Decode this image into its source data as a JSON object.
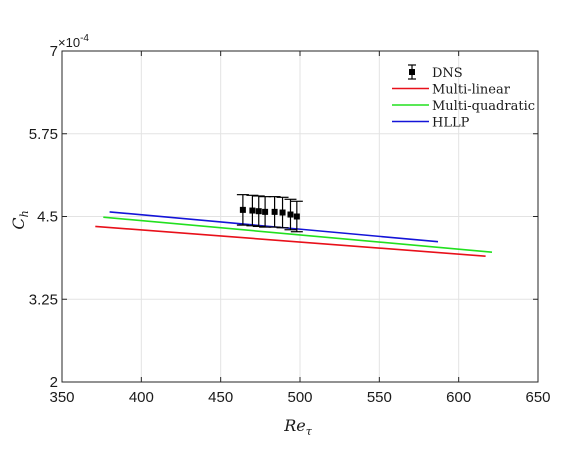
{
  "chart_data": {
    "type": "line",
    "title": "",
    "xlabel": "Re",
    "xlabel_subscript": "τ",
    "ylabel": "C",
    "ylabel_subscript": "h",
    "y_multiplier": "×10",
    "y_multiplier_exponent": "-4",
    "xlim": [
      350,
      650
    ],
    "ylim": [
      2,
      7
    ],
    "xticks": [
      "350",
      "400",
      "450",
      "500",
      "550",
      "600",
      "650"
    ],
    "yticks": [
      "2",
      "3.25",
      "4.5",
      "5.75",
      "7"
    ],
    "grid": true,
    "legend_position": "top-right",
    "dns": {
      "name": "DNS",
      "color": "#000000",
      "x": [
        464,
        470,
        474,
        478,
        484,
        489,
        494,
        498
      ],
      "y": [
        4.6,
        4.59,
        4.58,
        4.57,
        4.57,
        4.56,
        4.53,
        4.5
      ],
      "err": [
        0.23,
        0.23,
        0.23,
        0.23,
        0.23,
        0.23,
        0.23,
        0.23
      ]
    },
    "series": [
      {
        "name": "Multi-linear",
        "color": "#e8101a",
        "x": [
          371,
          617
        ],
        "y": [
          4.35,
          3.9
        ]
      },
      {
        "name": "Multi-quadratic",
        "color": "#22e01f",
        "x": [
          376,
          621
        ],
        "y": [
          4.49,
          3.96
        ]
      },
      {
        "name": "HLLP",
        "color": "#1414d8",
        "x": [
          380,
          587
        ],
        "y": [
          4.57,
          4.12
        ]
      }
    ]
  }
}
